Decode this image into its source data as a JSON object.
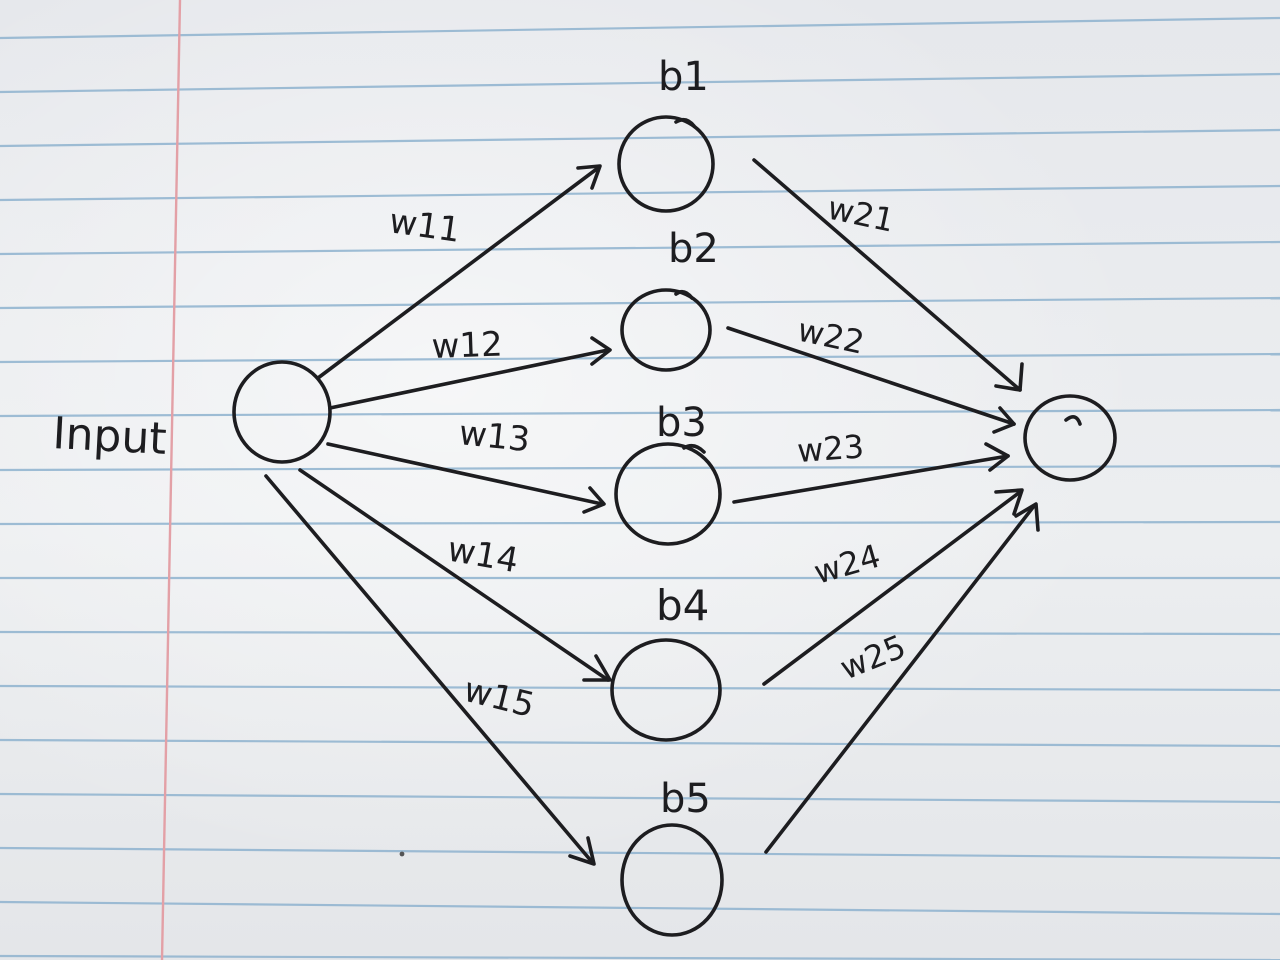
{
  "diagram": {
    "input_label": "Input",
    "biases": [
      "b1",
      "b2",
      "b3",
      "b4",
      "b5"
    ],
    "input_weights": [
      "w11",
      "w12",
      "w13",
      "w14",
      "w15"
    ],
    "output_weights": [
      "w21",
      "w22",
      "w23",
      "w24",
      "w25"
    ],
    "colors": {
      "ink": "#1d1d20",
      "paper": "#e9eaec",
      "rule_line": "#8fb3cf",
      "margin_line": "#e3a0a6"
    }
  }
}
